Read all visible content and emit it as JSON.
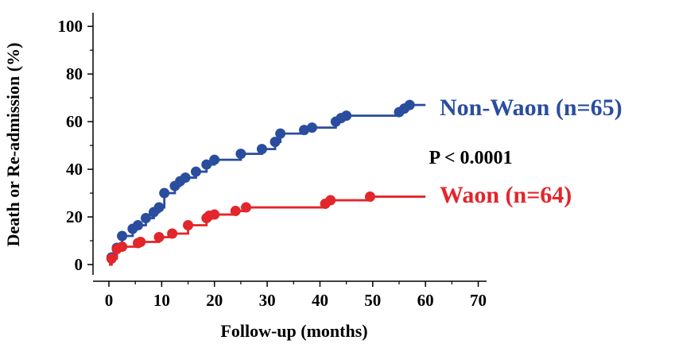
{
  "chart_data": {
    "type": "line",
    "step": true,
    "xlabel": "Follow-up (months)",
    "ylabel": "Death or Re-admission (%)",
    "xlim": [
      0,
      70
    ],
    "ylim": [
      0,
      100
    ],
    "xticks": [
      0,
      10,
      20,
      30,
      40,
      50,
      60,
      70
    ],
    "yticks": [
      0,
      20,
      40,
      60,
      80,
      100
    ],
    "grid": false,
    "annotation": "P < 0.0001",
    "series": [
      {
        "name": "Non-Waon (n=65)",
        "color": "#2a4d9e",
        "end_x": 60,
        "steps": [
          [
            0,
            0
          ],
          [
            0.5,
            3
          ],
          [
            1.5,
            7
          ],
          [
            2.5,
            12
          ],
          [
            4.5,
            15
          ],
          [
            5.5,
            16.5
          ],
          [
            7,
            19.5
          ],
          [
            8.5,
            22
          ],
          [
            9.5,
            24
          ],
          [
            10.5,
            30
          ],
          [
            12.5,
            33
          ],
          [
            13.5,
            35
          ],
          [
            14.5,
            36.5
          ],
          [
            16.5,
            39
          ],
          [
            18.5,
            42
          ],
          [
            20,
            44
          ],
          [
            25,
            46.5
          ],
          [
            29,
            48.5
          ],
          [
            31.5,
            51.5
          ],
          [
            32.5,
            55
          ],
          [
            37,
            56.5
          ],
          [
            38.5,
            57.5
          ],
          [
            43,
            60
          ],
          [
            44,
            61.5
          ],
          [
            45,
            62.5
          ],
          [
            55,
            64
          ],
          [
            56,
            65.5
          ],
          [
            57,
            67
          ]
        ],
        "markers": [
          [
            0.5,
            3
          ],
          [
            1.5,
            7
          ],
          [
            2.5,
            12
          ],
          [
            4.5,
            15
          ],
          [
            5.5,
            16.5
          ],
          [
            7,
            19.5
          ],
          [
            8.5,
            22
          ],
          [
            9.5,
            24
          ],
          [
            10.5,
            30
          ],
          [
            12.5,
            33
          ],
          [
            13.5,
            35
          ],
          [
            14.5,
            36.5
          ],
          [
            16.5,
            39
          ],
          [
            18.5,
            42
          ],
          [
            20,
            44
          ],
          [
            25,
            46.5
          ],
          [
            29,
            48.5
          ],
          [
            31.5,
            51.5
          ],
          [
            32.5,
            55
          ],
          [
            37,
            56.5
          ],
          [
            38.5,
            57.5
          ],
          [
            43,
            60
          ],
          [
            44,
            61.5
          ],
          [
            45,
            62.5
          ],
          [
            55,
            64
          ],
          [
            56,
            65.5
          ],
          [
            57,
            67
          ]
        ]
      },
      {
        "name": "Waon (n=64)",
        "color": "#e2262b",
        "end_x": 60,
        "steps": [
          [
            0,
            0
          ],
          [
            0.5,
            2.5
          ],
          [
            1.5,
            6.5
          ],
          [
            2.5,
            7.5
          ],
          [
            5.5,
            9
          ],
          [
            6,
            9.5
          ],
          [
            9.5,
            11.5
          ],
          [
            12,
            13
          ],
          [
            15,
            16.5
          ],
          [
            18.5,
            19.5
          ],
          [
            19,
            20.5
          ],
          [
            20,
            21
          ],
          [
            24,
            22.5
          ],
          [
            26,
            24
          ],
          [
            41,
            25.5
          ],
          [
            42,
            27
          ],
          [
            49.5,
            28.5
          ]
        ],
        "markers": [
          [
            0.5,
            2.5
          ],
          [
            1.5,
            6.5
          ],
          [
            2.5,
            7.5
          ],
          [
            5.5,
            9
          ],
          [
            6,
            9.5
          ],
          [
            9.5,
            11.5
          ],
          [
            12,
            13
          ],
          [
            15,
            16.5
          ],
          [
            18.5,
            19.5
          ],
          [
            19,
            20.5
          ],
          [
            20,
            21
          ],
          [
            24,
            22.5
          ],
          [
            26,
            24
          ],
          [
            41,
            25.5
          ],
          [
            42,
            27
          ],
          [
            49.5,
            28.5
          ]
        ]
      }
    ]
  }
}
